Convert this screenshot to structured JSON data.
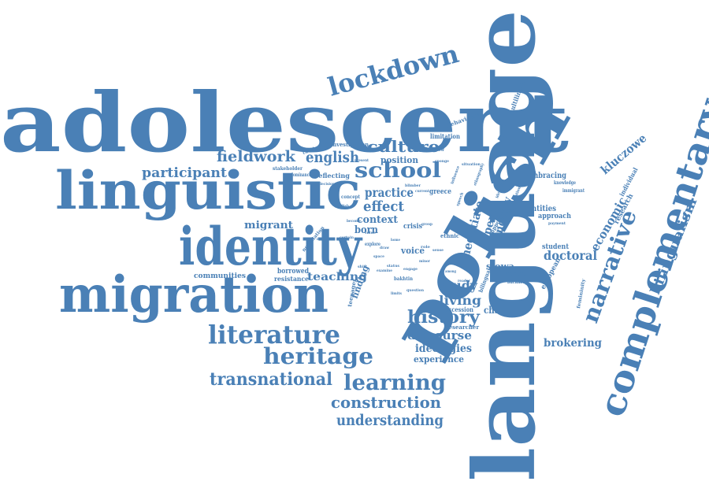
{
  "color": "#4a80b6",
  "words": {
    "adolescent": "adolescent",
    "language": "language",
    "polish": "polish",
    "linguistic": "linguistic",
    "identity": "identity",
    "migration": "migration",
    "complementary": "complementary",
    "narrative": "narrative",
    "lockdown": "lockdown",
    "literature": "literature",
    "heritage": "heritage",
    "transnational": "transnational",
    "learning": "learning",
    "construction": "construction",
    "understanding": "understanding",
    "school": "school",
    "culture": "culture",
    "english": "english",
    "fieldwork": "fieldwork",
    "participant": "participant",
    "practice": "practice",
    "effect": "effect",
    "context": "context",
    "born": "born",
    "history": "history",
    "discourse": "discourse",
    "ideologies": "ideologies",
    "experience": "experience",
    "study": "study",
    "living": "living",
    "teaching": "teaching",
    "voice": "voice",
    "bilingualism": "bilingualism",
    "economic": "economic",
    "doctoral": "doctoral",
    "brokering": "brokering",
    "challenge": "challenge",
    "kluczowe": "kluczowe",
    "migrant": "migrant",
    "communities": "communities",
    "borrowed": "borrowed",
    "resistance": "resistance",
    "negotiate": "negotiate",
    "expert": "expert",
    "inquiry": "inquiry",
    "slowa": "słowa",
    "identities": "identities",
    "approach": "approach",
    "embracing": "embracing",
    "position": "position",
    "limitation": "limitation",
    "investigation": "investigation",
    "multilingual": "multilingual",
    "behavioural": "behavioural",
    "stakeholder": "stakeholder",
    "reflecting": "reflecting",
    "contingent": "contingent",
    "interview": "interview",
    "greece": "greece",
    "crisis": "crisis",
    "student": "student",
    "resident": "resident",
    "european": "european",
    "research": "research",
    "individual": "individual",
    "knowledge": "knowledge",
    "immigrant": "immigrant",
    "situation": "situation",
    "dominance": "dominance",
    "concept": "concept",
    "negotiation": "negotiation",
    "finding": "finding",
    "teenager": "teenager",
    "bakhtin": "bakhtin",
    "ethnic": "ethnic",
    "accession": "accession",
    "researcher": "researcher",
    "backdrop": "backdrop",
    "bilingual": "bilingual",
    "support": "support",
    "notion": "notion",
    "payment": "payment",
    "southern": "southern",
    "education": "education",
    "femininity": "femininity",
    "explore": "explore",
    "examine": "examine",
    "space": "space",
    "minor": "minor",
    "limits": "limits",
    "question": "question",
    "engage": "engage",
    "blimber": "blimber",
    "sponge": "sponge",
    "present": "present",
    "context2": "current",
    "ideology": "ideology",
    "status": "status",
    "speech": "speech",
    "among": "among",
    "volume": "volume",
    "home": "home",
    "draw": "draw",
    "shift": "shift",
    "group": "group",
    "value": "value",
    "role": "role",
    "sense": "sense",
    "reader": "reader",
    "ethnography": "ethnography",
    "influence": "influence",
    "decision": "decision",
    "english2": "english",
    "demand": "demand",
    "certain": "certain",
    "become": "become"
  }
}
